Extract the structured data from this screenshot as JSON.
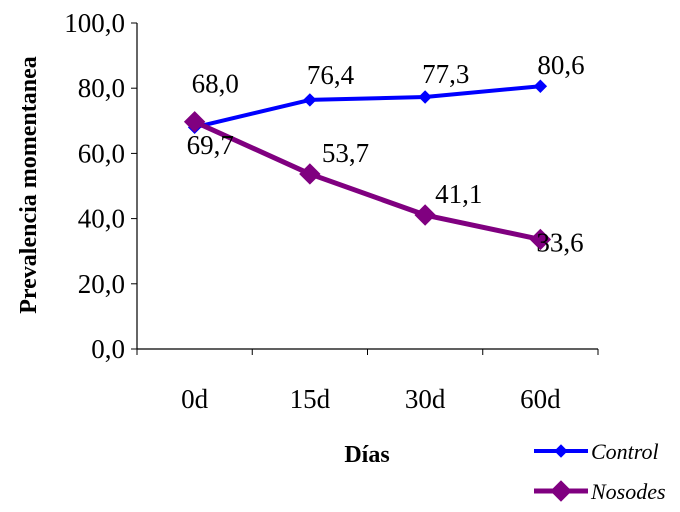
{
  "chart_data": {
    "type": "line",
    "categories": [
      "0d",
      "15d",
      "30d",
      "60d"
    ],
    "series": [
      {
        "name": "Control",
        "values": [
          68.0,
          76.4,
          77.3,
          80.6
        ],
        "labels": [
          "68,0",
          "76,4",
          "77,3",
          "80,6"
        ],
        "color": "#0000FF",
        "marker": "diamond-small"
      },
      {
        "name": "Nosodes",
        "values": [
          69.7,
          53.7,
          41.1,
          33.6
        ],
        "labels": [
          "69,7",
          "53,7",
          "41,1",
          "33,6"
        ],
        "color": "#800080",
        "marker": "diamond-large"
      }
    ],
    "ylim": [
      0,
      100
    ],
    "yticks": [
      0,
      20,
      40,
      60,
      80,
      100
    ],
    "ytick_labels": [
      "0,0",
      "20,0",
      "40,0",
      "60,0",
      "80,0",
      "100,0"
    ],
    "xlabel": "Días",
    "ylabel": "Prevalencia momentanea",
    "grid": false,
    "legend_position": "bottom-right"
  }
}
